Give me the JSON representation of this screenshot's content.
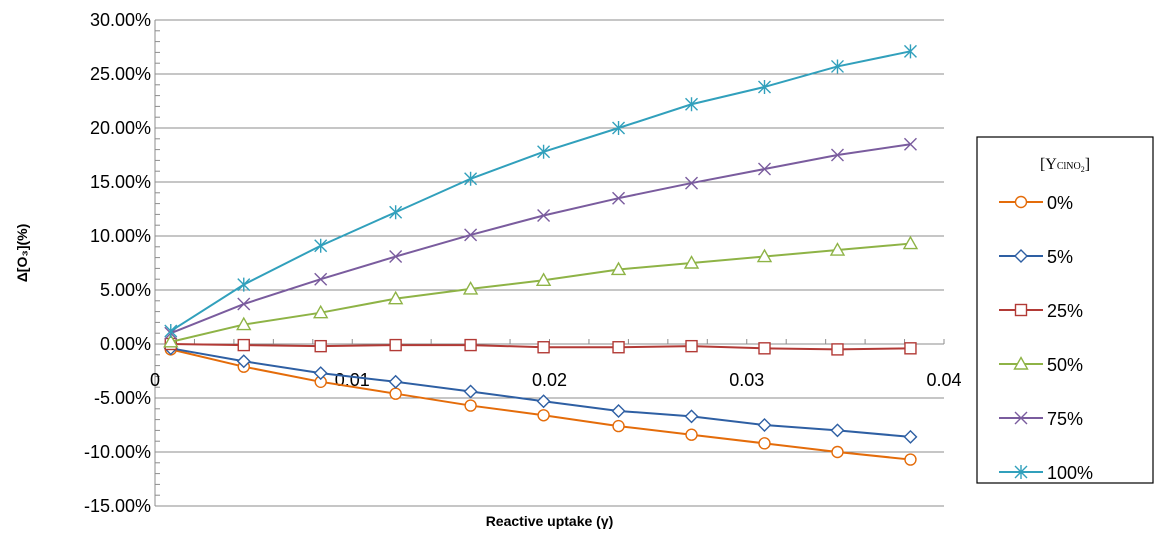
{
  "chart_data": {
    "type": "line",
    "title": "",
    "xlabel": "Reactive uptake (γ)",
    "ylabel": "Δ[O₃](%)",
    "xlim": [
      0,
      0.04
    ],
    "ylim": [
      -0.15,
      0.3
    ],
    "x_ticks": [
      0,
      0.01,
      0.02,
      0.03,
      0.04
    ],
    "x_tick_labels": [
      "0",
      "0.01",
      "0.02",
      "0.03",
      "0.04"
    ],
    "y_ticks": [
      -0.15,
      -0.1,
      -0.05,
      0,
      0.05,
      0.1,
      0.15,
      0.2,
      0.25,
      0.3
    ],
    "y_tick_labels": [
      "-15.00%",
      "-10.00%",
      "-5.00%",
      "0.00%",
      "5.00%",
      "10.00%",
      "15.00%",
      "20.00%",
      "25.00%",
      "30.00%"
    ],
    "grid": true,
    "legend": {
      "position": "right",
      "title_main": "[Y",
      "title_sub": "ClNO",
      "title_sub2": "2",
      "title_close": "]"
    },
    "x": [
      0.0008,
      0.0045,
      0.0084,
      0.0122,
      0.016,
      0.0197,
      0.0235,
      0.0272,
      0.0309,
      0.0346,
      0.0383
    ],
    "series": [
      {
        "name": "0%",
        "color": "#E46C0A",
        "marker": "circle",
        "values": [
          -0.005,
          -0.021,
          -0.035,
          -0.046,
          -0.057,
          -0.066,
          -0.076,
          -0.084,
          -0.092,
          -0.1,
          -0.107
        ]
      },
      {
        "name": "5%",
        "color": "#2E5FA3",
        "marker": "diamond",
        "values": [
          -0.004,
          -0.016,
          -0.027,
          -0.035,
          -0.044,
          -0.053,
          -0.062,
          -0.067,
          -0.075,
          -0.08,
          -0.086
        ]
      },
      {
        "name": "25%",
        "color": "#B23A36",
        "marker": "square",
        "values": [
          0.0,
          -0.001,
          -0.002,
          -0.001,
          -0.001,
          -0.003,
          -0.003,
          -0.002,
          -0.004,
          -0.005,
          -0.004
        ]
      },
      {
        "name": "50%",
        "color": "#8EB346",
        "marker": "triangle",
        "values": [
          0.002,
          0.018,
          0.029,
          0.042,
          0.051,
          0.059,
          0.069,
          0.075,
          0.081,
          0.087,
          0.093
        ]
      },
      {
        "name": "75%",
        "color": "#7A5C9E",
        "marker": "x",
        "values": [
          0.01,
          0.037,
          0.06,
          0.081,
          0.101,
          0.119,
          0.135,
          0.149,
          0.162,
          0.175,
          0.185
        ]
      },
      {
        "name": "100%",
        "color": "#31A0BC",
        "marker": "asterisk",
        "values": [
          0.012,
          0.055,
          0.091,
          0.122,
          0.153,
          0.178,
          0.2,
          0.222,
          0.238,
          0.257,
          0.271
        ]
      }
    ]
  }
}
